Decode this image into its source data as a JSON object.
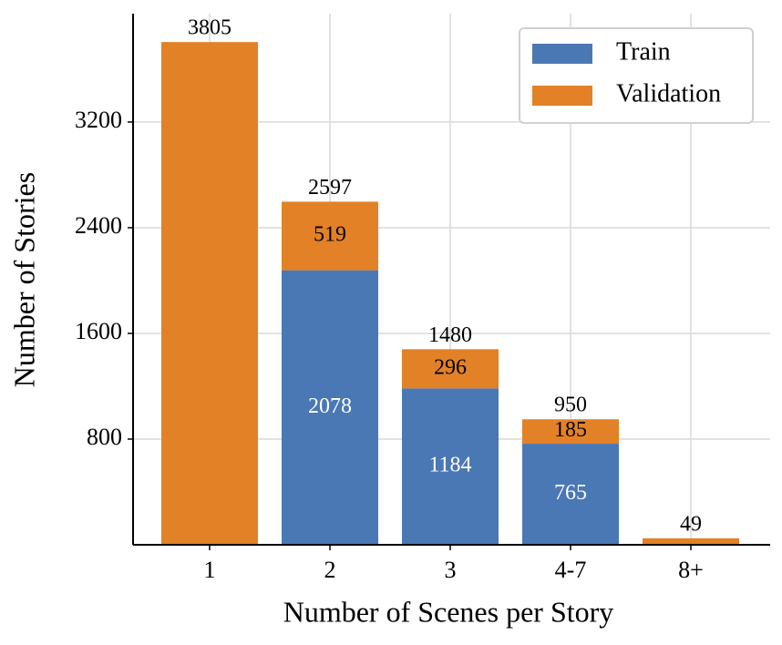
{
  "chart_data": {
    "type": "stacked_bar",
    "categories": [
      "1",
      "2",
      "3",
      "4-7",
      "8+"
    ],
    "series": [
      {
        "name": "Train",
        "color": "#4a78b4",
        "values": [
          null,
          2078,
          1184,
          765,
          null
        ]
      },
      {
        "name": "Validation",
        "color": "#e38126",
        "values": [
          3805,
          519,
          296,
          185,
          49
        ]
      }
    ],
    "totals": [
      3805,
      2597,
      1480,
      950,
      49
    ],
    "xlabel": "Number of Scenes per Story",
    "ylabel": "Number of Stories",
    "ylim": [
      0,
      4020
    ],
    "yticks": [
      800,
      1600,
      2400,
      3200
    ],
    "grid": true,
    "legend": "upper right"
  }
}
